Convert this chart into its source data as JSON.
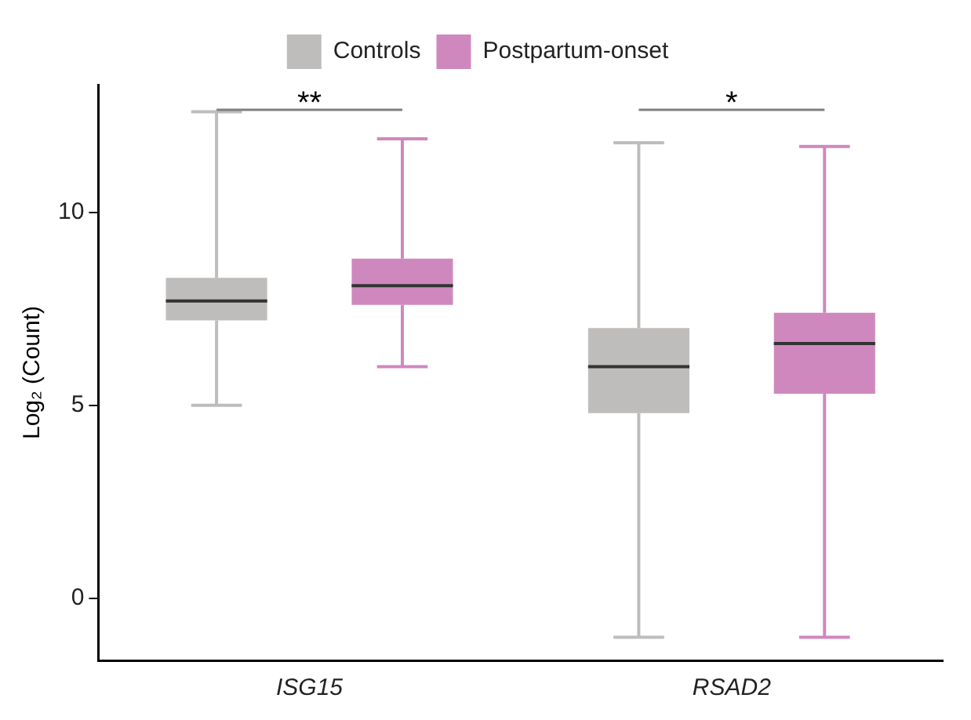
{
  "chart_data": {
    "type": "box",
    "ylabel": "Log₂ (Count)",
    "categories": [
      "ISG15",
      "RSAD2"
    ],
    "series": [
      {
        "name": "Controls",
        "color": "#bebdbb",
        "boxes": [
          {
            "low": 5.0,
            "q1": 7.2,
            "median": 7.7,
            "q3": 8.3,
            "high": 12.6
          },
          {
            "low": -1.0,
            "q1": 4.8,
            "median": 6.0,
            "q3": 7.0,
            "high": 11.8
          }
        ]
      },
      {
        "name": "Postpartum-onset",
        "color": "#cf88bd",
        "boxes": [
          {
            "low": 6.0,
            "q1": 7.6,
            "median": 8.1,
            "q3": 8.8,
            "high": 11.9
          },
          {
            "low": -1.0,
            "q1": 5.3,
            "median": 6.6,
            "q3": 7.4,
            "high": 11.7
          }
        ]
      }
    ],
    "annotations": [
      "**",
      "*"
    ],
    "ylim": [
      -1.6,
      13.3
    ],
    "yticks": [
      0,
      5,
      10
    ],
    "grid": false,
    "legend": "top"
  }
}
